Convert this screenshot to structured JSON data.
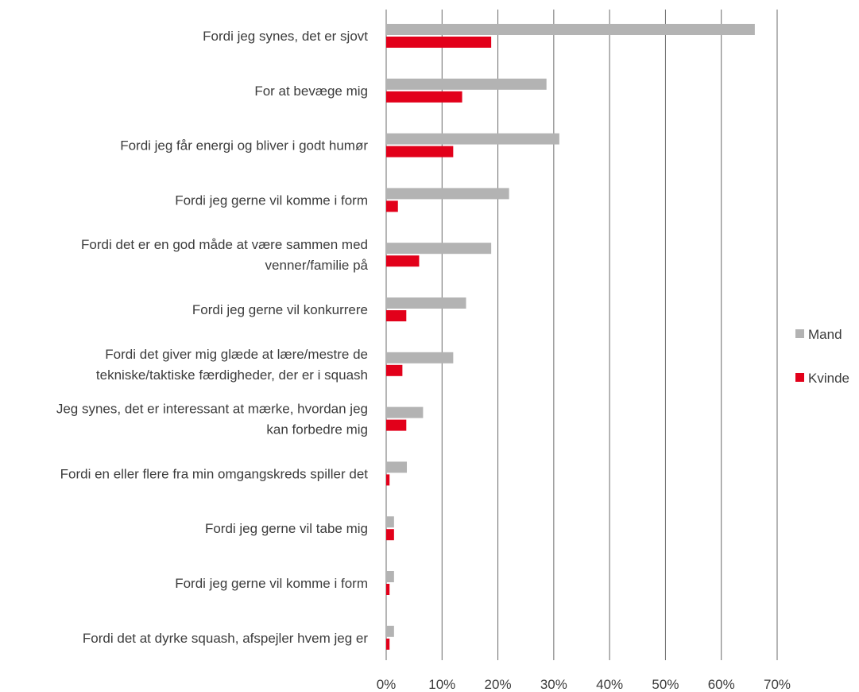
{
  "chart_data": {
    "type": "bar",
    "orientation": "horizontal",
    "title": "",
    "xlabel": "",
    "ylabel": "",
    "xlim": [
      0,
      70
    ],
    "x_ticks": [
      0,
      10,
      20,
      30,
      40,
      50,
      60,
      70
    ],
    "tick_suffix": "%",
    "grid": true,
    "legend_position": "right",
    "categories": [
      [
        "Fordi jeg synes, det er sjovt"
      ],
      [
        "For at bevæge mig"
      ],
      [
        "Fordi jeg får energi og bliver i godt humør"
      ],
      [
        "Fordi jeg gerne vil komme i form"
      ],
      [
        "Fordi det er en god måde at være sammen med",
        "venner/familie på"
      ],
      [
        "Fordi jeg gerne vil konkurrere"
      ],
      [
        "Fordi det giver mig glæde at lære/mestre de",
        "tekniske/taktiske færdigheder, der er i squash"
      ],
      [
        "Jeg synes, det er interessant at mærke, hvordan jeg",
        "kan forbedre mig"
      ],
      [
        "Fordi en eller flere fra min omgangskreds spiller det"
      ],
      [
        "Fordi jeg gerne vil tabe mig"
      ],
      [
        "Fordi jeg gerne vil komme i form"
      ],
      [
        "Fordi det at dyrke squash, afspejler hvem jeg er"
      ]
    ],
    "series": [
      {
        "name": "Mand",
        "color": "#b3b3b3",
        "values": [
          66,
          28.7,
          31,
          22,
          18.8,
          14.3,
          12,
          6.6,
          3.7,
          1.4,
          1.4,
          1.4
        ]
      },
      {
        "name": "Kvinde",
        "color": "#e2001a",
        "values": [
          18.8,
          13.6,
          12,
          2.1,
          5.9,
          3.6,
          2.9,
          3.6,
          0.6,
          1.4,
          0.6,
          0.6
        ]
      }
    ]
  }
}
